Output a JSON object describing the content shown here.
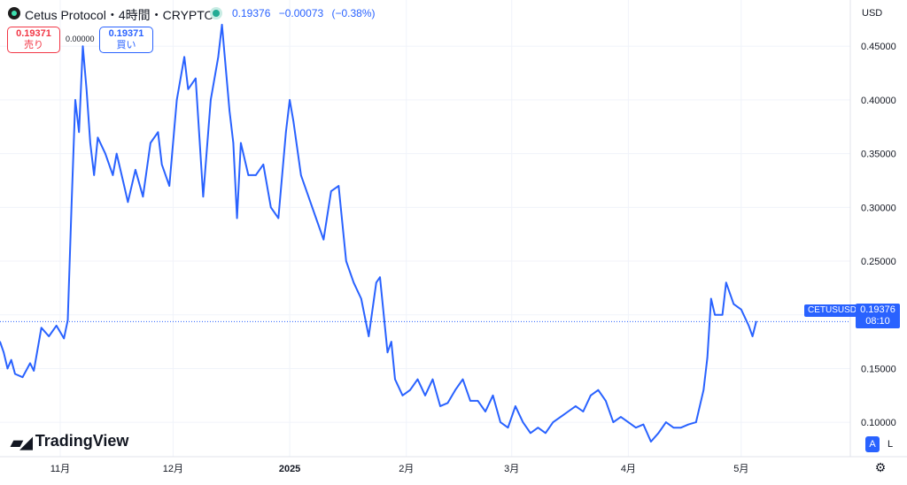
{
  "header": {
    "title": "Cetus Protocol・4時間・CRYPTO",
    "last": "0.19376",
    "change": "−0.00073",
    "change_pct": "(−0.38%)"
  },
  "trade": {
    "sell_price": "0.19371",
    "sell_label": "売り",
    "spread": "0.00000",
    "buy_price": "0.19371",
    "buy_label": "買い"
  },
  "currency": "USD",
  "price_tag": {
    "symbol": "CETUSUSD",
    "price": "0.19376",
    "countdown": "08:10"
  },
  "watermark": "TradingView",
  "scale_buttons": {
    "auto": "A",
    "log": "L"
  },
  "colors": {
    "line": "#2962ff",
    "grid": "#f0f3fa",
    "up": "#2962ff",
    "down": "#f23645"
  },
  "chart_data": {
    "type": "line",
    "symbol": "CETUSUSD",
    "interval": "4時間",
    "ylim": [
      0.068,
      0.493
    ],
    "y_ticks": [
      "0.10000",
      "0.15000",
      "0.20000",
      "0.25000",
      "0.30000",
      "0.35000",
      "0.40000",
      "0.45000"
    ],
    "y_tick_values": [
      0.1,
      0.15,
      0.2,
      0.25,
      0.3,
      0.35,
      0.4,
      0.45
    ],
    "x_ticks": [
      "11月",
      "12月",
      "2025",
      "2月",
      "3月",
      "4月",
      "5月"
    ],
    "x_tick_dates": [
      "2024-11-01",
      "2024-12-01",
      "2025-01-01",
      "2025-02-01",
      "2025-03-01",
      "2025-04-01",
      "2025-05-01"
    ],
    "xlim": [
      "2024-10-16",
      "2025-05-30"
    ],
    "last_price": 0.19376,
    "series": [
      {
        "values": [
          [
            "2024-10-16",
            0.175
          ],
          [
            "2024-10-17",
            0.165
          ],
          [
            "2024-10-18",
            0.15
          ],
          [
            "2024-10-19",
            0.158
          ],
          [
            "2024-10-20",
            0.145
          ],
          [
            "2024-10-22",
            0.142
          ],
          [
            "2024-10-24",
            0.155
          ],
          [
            "2024-10-25",
            0.148
          ],
          [
            "2024-10-27",
            0.188
          ],
          [
            "2024-10-29",
            0.18
          ],
          [
            "2024-10-31",
            0.19
          ],
          [
            "2024-11-02",
            0.178
          ],
          [
            "2024-11-03",
            0.195
          ],
          [
            "2024-11-04",
            0.3
          ],
          [
            "2024-11-05",
            0.4
          ],
          [
            "2024-11-06",
            0.37
          ],
          [
            "2024-11-07",
            0.45
          ],
          [
            "2024-11-08",
            0.41
          ],
          [
            "2024-11-09",
            0.36
          ],
          [
            "2024-11-10",
            0.33
          ],
          [
            "2024-11-11",
            0.365
          ],
          [
            "2024-11-13",
            0.35
          ],
          [
            "2024-11-15",
            0.33
          ],
          [
            "2024-11-16",
            0.35
          ],
          [
            "2024-11-18",
            0.32
          ],
          [
            "2024-11-19",
            0.305
          ],
          [
            "2024-11-21",
            0.335
          ],
          [
            "2024-11-23",
            0.31
          ],
          [
            "2024-11-25",
            0.36
          ],
          [
            "2024-11-27",
            0.37
          ],
          [
            "2024-11-28",
            0.34
          ],
          [
            "2024-11-30",
            0.32
          ],
          [
            "2024-12-02",
            0.4
          ],
          [
            "2024-12-04",
            0.44
          ],
          [
            "2024-12-05",
            0.41
          ],
          [
            "2024-12-07",
            0.42
          ],
          [
            "2024-12-09",
            0.31
          ],
          [
            "2024-12-11",
            0.4
          ],
          [
            "2024-12-13",
            0.44
          ],
          [
            "2024-12-14",
            0.47
          ],
          [
            "2024-12-16",
            0.39
          ],
          [
            "2024-12-17",
            0.36
          ],
          [
            "2024-12-18",
            0.29
          ],
          [
            "2024-12-19",
            0.36
          ],
          [
            "2024-12-21",
            0.33
          ],
          [
            "2024-12-23",
            0.33
          ],
          [
            "2024-12-25",
            0.34
          ],
          [
            "2024-12-27",
            0.3
          ],
          [
            "2024-12-29",
            0.29
          ],
          [
            "2024-12-31",
            0.37
          ],
          [
            "2025-01-01",
            0.4
          ],
          [
            "2025-01-02",
            0.38
          ],
          [
            "2025-01-04",
            0.33
          ],
          [
            "2025-01-06",
            0.31
          ],
          [
            "2025-01-08",
            0.29
          ],
          [
            "2025-01-10",
            0.27
          ],
          [
            "2025-01-12",
            0.315
          ],
          [
            "2025-01-14",
            0.32
          ],
          [
            "2025-01-16",
            0.25
          ],
          [
            "2025-01-18",
            0.23
          ],
          [
            "2025-01-20",
            0.215
          ],
          [
            "2025-01-22",
            0.18
          ],
          [
            "2025-01-24",
            0.23
          ],
          [
            "2025-01-25",
            0.235
          ],
          [
            "2025-01-27",
            0.165
          ],
          [
            "2025-01-28",
            0.175
          ],
          [
            "2025-01-29",
            0.14
          ],
          [
            "2025-01-31",
            0.125
          ],
          [
            "2025-02-02",
            0.13
          ],
          [
            "2025-02-04",
            0.14
          ],
          [
            "2025-02-06",
            0.125
          ],
          [
            "2025-02-08",
            0.14
          ],
          [
            "2025-02-10",
            0.115
          ],
          [
            "2025-02-12",
            0.118
          ],
          [
            "2025-02-14",
            0.13
          ],
          [
            "2025-02-16",
            0.14
          ],
          [
            "2025-02-18",
            0.12
          ],
          [
            "2025-02-20",
            0.12
          ],
          [
            "2025-02-22",
            0.11
          ],
          [
            "2025-02-24",
            0.125
          ],
          [
            "2025-02-26",
            0.1
          ],
          [
            "2025-02-28",
            0.095
          ],
          [
            "2025-03-02",
            0.115
          ],
          [
            "2025-03-04",
            0.1
          ],
          [
            "2025-03-06",
            0.09
          ],
          [
            "2025-03-08",
            0.095
          ],
          [
            "2025-03-10",
            0.09
          ],
          [
            "2025-03-12",
            0.1
          ],
          [
            "2025-03-14",
            0.105
          ],
          [
            "2025-03-16",
            0.11
          ],
          [
            "2025-03-18",
            0.115
          ],
          [
            "2025-03-20",
            0.11
          ],
          [
            "2025-03-22",
            0.125
          ],
          [
            "2025-03-24",
            0.13
          ],
          [
            "2025-03-26",
            0.12
          ],
          [
            "2025-03-28",
            0.1
          ],
          [
            "2025-03-30",
            0.105
          ],
          [
            "2025-04-01",
            0.1
          ],
          [
            "2025-04-03",
            0.095
          ],
          [
            "2025-04-05",
            0.098
          ],
          [
            "2025-04-07",
            0.082
          ],
          [
            "2025-04-09",
            0.09
          ],
          [
            "2025-04-11",
            0.1
          ],
          [
            "2025-04-13",
            0.095
          ],
          [
            "2025-04-15",
            0.095
          ],
          [
            "2025-04-17",
            0.098
          ],
          [
            "2025-04-19",
            0.1
          ],
          [
            "2025-04-21",
            0.13
          ],
          [
            "2025-04-22",
            0.16
          ],
          [
            "2025-04-23",
            0.215
          ],
          [
            "2025-04-24",
            0.2
          ],
          [
            "2025-04-26",
            0.2
          ],
          [
            "2025-04-27",
            0.23
          ],
          [
            "2025-04-29",
            0.21
          ],
          [
            "2025-05-01",
            0.205
          ],
          [
            "2025-05-03",
            0.19
          ],
          [
            "2025-05-04",
            0.18
          ],
          [
            "2025-05-05",
            0.19376
          ]
        ]
      }
    ]
  }
}
